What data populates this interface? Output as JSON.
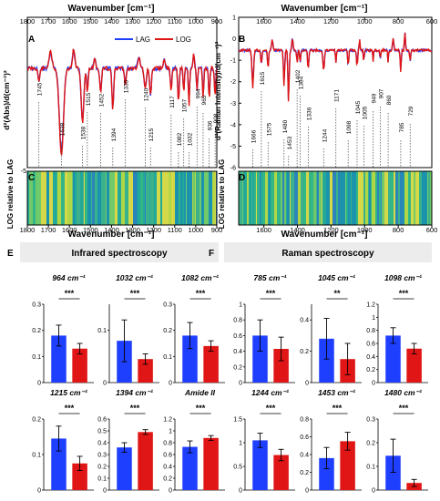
{
  "spectra": {
    "panel_a": {
      "letter": "A",
      "x_label": "Wavenumber [cm⁻¹]",
      "y_label": "d²(Abs)/d(cm⁻¹)²",
      "x_ticks": [
        "1800",
        "1700",
        "1600",
        "1500",
        "1400",
        "1300",
        "1200",
        "1100",
        "1000",
        "900"
      ],
      "x_range": [
        1800,
        900
      ],
      "legend": [
        "LAG",
        "LOG"
      ],
      "peak_labels": [
        "1745",
        "1638",
        "1538",
        "1515",
        "1452",
        "1394",
        "1335",
        "1240",
        "1215",
        "1117",
        "1082",
        "1057",
        "1032",
        "994",
        "965",
        "936",
        "908"
      ]
    },
    "panel_b": {
      "letter": "B",
      "x_label": "Wavenumber [cm⁻¹]",
      "y_label": "d²(Raman Intensity)/d(cm⁻¹)²",
      "x_ticks": [
        "1600",
        "1400",
        "1200",
        "1000",
        "800",
        "600"
      ],
      "x_range": [
        1750,
        600
      ],
      "y_ticks": [
        "1",
        "0",
        "-1",
        "-2",
        "-3",
        "-4",
        "-5",
        "-6"
      ],
      "y_range": [
        -6,
        1
      ],
      "peak_labels": [
        "1666",
        "1615",
        "1575",
        "1480",
        "1453",
        "1402",
        "1384",
        "1336",
        "1244",
        "1171",
        "1098",
        "1045",
        "1005",
        "949",
        "907",
        "860",
        "785",
        "729"
      ]
    },
    "panel_c": {
      "letter": "C",
      "y_label": "LOG relative to LAG",
      "x_ticks": [
        "1800",
        "1700",
        "1600",
        "1500",
        "1400",
        "1300",
        "1200",
        "1100",
        "1000",
        "900"
      ],
      "x_label": "Wavenumber [cm⁻¹]"
    },
    "panel_d": {
      "letter": "D",
      "y_label": "LOG relative to LAG",
      "x_ticks": [
        "1600",
        "1400",
        "1200",
        "1000",
        "800",
        "600"
      ],
      "x_label": "Wavenumber [cm⁻¹]"
    },
    "y_tick_shared": "-5",
    "colors": {
      "LAG": "#1f3fff",
      "LOG": "#e01515"
    }
  },
  "sections": {
    "e_letter": "E",
    "e_title": "Infrared spectroscopy",
    "f_letter": "F",
    "f_title": "Raman spectroscopy"
  },
  "chart_data": [
    {
      "type": "bar",
      "title": "964 cm⁻¹",
      "categories": [
        "LAG",
        "LOG"
      ],
      "values": [
        0.18,
        0.13
      ],
      "errors": [
        0.04,
        0.02
      ],
      "significance": "***",
      "ylim": [
        0,
        0.3
      ],
      "yticks": [
        "0",
        "0.1",
        "0.2",
        "0.3"
      ]
    },
    {
      "type": "bar",
      "title": "1032 cm⁻¹",
      "categories": [
        "LAG",
        "LOG"
      ],
      "values": [
        0.08,
        0.045
      ],
      "errors": [
        0.04,
        0.01
      ],
      "significance": "***",
      "ylim": [
        0,
        0.15
      ],
      "yticks": [
        "0",
        "0.1"
      ]
    },
    {
      "type": "bar",
      "title": "1082 cm⁻¹",
      "categories": [
        "LAG",
        "LOG"
      ],
      "values": [
        0.18,
        0.14
      ],
      "errors": [
        0.05,
        0.02
      ],
      "significance": "***",
      "ylim": [
        0,
        0.3
      ],
      "yticks": [
        "0",
        "0.1",
        "0.2",
        "0.3"
      ]
    },
    {
      "type": "bar",
      "title": "785 cm⁻¹",
      "categories": [
        "LAG",
        "LOG"
      ],
      "values": [
        0.6,
        0.43
      ],
      "errors": [
        0.2,
        0.15
      ],
      "significance": "***",
      "ylim": [
        0,
        1
      ],
      "yticks": [
        "0",
        "0.2",
        "0.4",
        "0.6",
        "0.8",
        "1"
      ]
    },
    {
      "type": "bar",
      "title": "1045 cm⁻¹",
      "categories": [
        "LAG",
        "LOG"
      ],
      "values": [
        0.28,
        0.15
      ],
      "errors": [
        0.13,
        0.1
      ],
      "significance": "**",
      "ylim": [
        0,
        0.5
      ],
      "yticks": [
        "0",
        "0.2",
        "0.4"
      ]
    },
    {
      "type": "bar",
      "title": "1098 cm⁻¹",
      "categories": [
        "LAG",
        "LOG"
      ],
      "values": [
        0.72,
        0.52
      ],
      "errors": [
        0.12,
        0.08
      ],
      "significance": "***",
      "ylim": [
        0,
        1.2
      ],
      "yticks": [
        "0",
        "0.2",
        "0.4",
        "0.6",
        "0.8",
        "1",
        "1.2"
      ]
    },
    {
      "type": "bar",
      "title": "1215 cm⁻¹",
      "categories": [
        "LAG",
        "LOG"
      ],
      "values": [
        0.145,
        0.075
      ],
      "errors": [
        0.035,
        0.02
      ],
      "significance": "***",
      "ylim": [
        0,
        0.2
      ],
      "yticks": [
        "0",
        "0.1",
        "0.2"
      ]
    },
    {
      "type": "bar",
      "title": "1394 cm⁻¹",
      "categories": [
        "LAG",
        "LOG"
      ],
      "values": [
        0.36,
        0.49
      ],
      "errors": [
        0.04,
        0.02
      ],
      "significance": "***",
      "ylim": [
        0,
        0.6
      ],
      "yticks": [
        "0",
        "0.1",
        "0.2",
        "0.3",
        "0.4",
        "0.5",
        "0.6"
      ]
    },
    {
      "type": "bar",
      "title": "Amide II",
      "categories": [
        "LAG",
        "LOG"
      ],
      "values": [
        0.73,
        0.88
      ],
      "errors": [
        0.1,
        0.04
      ],
      "significance": "***",
      "ylim": [
        0,
        1.2
      ],
      "yticks": [
        "0",
        "0.2",
        "0.4",
        "0.6",
        "0.8",
        "1",
        "1.2"
      ]
    },
    {
      "type": "bar",
      "title": "1244 cm⁻¹",
      "categories": [
        "LAG",
        "LOG"
      ],
      "values": [
        1.05,
        0.74
      ],
      "errors": [
        0.15,
        0.12
      ],
      "significance": "***",
      "ylim": [
        0,
        1.5
      ],
      "yticks": [
        "0",
        "0.5",
        "1",
        "1.5"
      ]
    },
    {
      "type": "bar",
      "title": "1453 cm⁻¹",
      "categories": [
        "LAG",
        "LOG"
      ],
      "values": [
        0.36,
        0.55
      ],
      "errors": [
        0.12,
        0.1
      ],
      "significance": "***",
      "ylim": [
        0,
        0.8
      ],
      "yticks": [
        "0",
        "0.2",
        "0.4",
        "0.6",
        "0.8"
      ]
    },
    {
      "type": "bar",
      "title": "1480 cm⁻¹",
      "categories": [
        "LAG",
        "LOG"
      ],
      "values": [
        0.145,
        0.03
      ],
      "errors": [
        0.07,
        0.015
      ],
      "significance": "***",
      "ylim": [
        0,
        0.3
      ],
      "yticks": [
        "0",
        "0.1",
        "0.2",
        "0.3"
      ]
    }
  ]
}
